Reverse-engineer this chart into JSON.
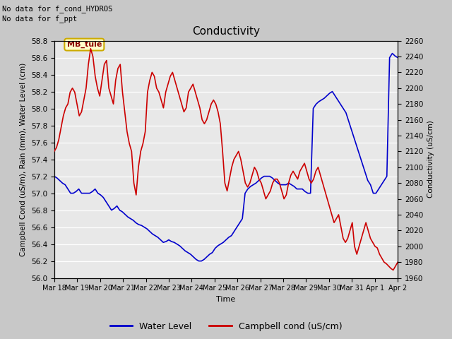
{
  "title": "Conductivity",
  "xlabel": "Time",
  "ylabel_left": "Campbell Cond (uS/m), Rain (mm), Water Level (cm)",
  "ylabel_right": "Conductivity (uS/cm)",
  "annotation_text": "No data for f_cond_HYDROS\nNo data for f_ppt",
  "box_label": "MB_tule",
  "ylim_left": [
    56.0,
    58.8
  ],
  "ylim_right": [
    1960,
    2260
  ],
  "xtick_labels": [
    "Mar 18",
    "Mar 19",
    "Mar 20",
    "Mar 21",
    "Mar 22",
    "Mar 23",
    "Mar 24",
    "Mar 25",
    "Mar 26",
    "Mar 27",
    "Mar 28",
    "Mar 29",
    "Mar 30",
    "Mar 31",
    "Apr 1",
    "Apr 2"
  ],
  "plot_bg_color": "#e8e8e8",
  "fig_bg_color": "#c8c8c8",
  "blue_color": "#0000cc",
  "red_color": "#cc0000",
  "legend_blue_label": "Water Level",
  "legend_red_label": "Campbell cond (uS/cm)",
  "water_level_y": [
    57.2,
    57.18,
    57.15,
    57.12,
    57.1,
    57.05,
    57.0,
    57.0,
    57.02,
    57.05,
    57.0,
    57.0,
    57.0,
    57.0,
    57.02,
    57.05,
    57.0,
    56.98,
    56.95,
    56.9,
    56.85,
    56.8,
    56.82,
    56.85,
    56.8,
    56.78,
    56.75,
    56.72,
    56.7,
    56.68,
    56.65,
    56.63,
    56.62,
    56.6,
    56.58,
    56.55,
    56.52,
    56.5,
    56.48,
    56.45,
    56.42,
    56.43,
    56.45,
    56.43,
    56.42,
    56.4,
    56.38,
    56.35,
    56.32,
    56.3,
    56.28,
    56.25,
    56.22,
    56.2,
    56.2,
    56.22,
    56.25,
    56.28,
    56.3,
    56.35,
    56.38,
    56.4,
    56.42,
    56.45,
    56.48,
    56.5,
    56.55,
    56.6,
    56.65,
    56.7,
    57.0,
    57.05,
    57.08,
    57.1,
    57.12,
    57.15,
    57.18,
    57.2,
    57.2,
    57.2,
    57.18,
    57.15,
    57.12,
    57.1,
    57.1,
    57.1,
    57.12,
    57.1,
    57.08,
    57.05,
    57.05,
    57.05,
    57.02,
    57.0,
    57.0,
    58.0,
    58.05,
    58.08,
    58.1,
    58.12,
    58.15,
    58.18,
    58.2,
    58.15,
    58.1,
    58.05,
    58.0,
    57.95,
    57.85,
    57.75,
    57.65,
    57.55,
    57.45,
    57.35,
    57.25,
    57.15,
    57.1,
    57.0,
    57.0,
    57.05,
    57.1,
    57.15,
    57.2,
    58.6,
    58.65,
    58.62,
    58.6
  ],
  "campbell_y": [
    2120,
    2125,
    2135,
    2150,
    2165,
    2175,
    2180,
    2195,
    2200,
    2195,
    2180,
    2165,
    2170,
    2185,
    2200,
    2230,
    2250,
    2240,
    2215,
    2200,
    2190,
    2210,
    2230,
    2235,
    2200,
    2190,
    2180,
    2210,
    2225,
    2230,
    2195,
    2170,
    2145,
    2130,
    2120,
    2080,
    2065,
    2100,
    2120,
    2130,
    2145,
    2195,
    2210,
    2220,
    2215,
    2200,
    2195,
    2185,
    2175,
    2195,
    2205,
    2215,
    2220,
    2210,
    2200,
    2190,
    2180,
    2170,
    2175,
    2195,
    2200,
    2205,
    2195,
    2185,
    2175,
    2160,
    2155,
    2160,
    2170,
    2180,
    2185,
    2180,
    2170,
    2155,
    2120,
    2080,
    2070,
    2085,
    2100,
    2110,
    2115,
    2120,
    2110,
    2095,
    2080,
    2075,
    2080,
    2090,
    2100,
    2095,
    2085,
    2080,
    2070,
    2060,
    2065,
    2070,
    2080,
    2085,
    2085,
    2080,
    2070,
    2060,
    2065,
    2080,
    2090,
    2095,
    2090,
    2085,
    2095,
    2100,
    2105,
    2095,
    2085,
    2080,
    2085,
    2095,
    2100,
    2090,
    2080,
    2070,
    2060,
    2050,
    2040,
    2030,
    2035,
    2040,
    2025,
    2010,
    2005,
    2010,
    2020,
    2030,
    2000,
    1990,
    2000,
    2010,
    2020,
    2030,
    2020,
    2010,
    2005,
    2000,
    1998,
    1990,
    1985,
    1980,
    1978,
    1975,
    1972,
    1970,
    1975,
    1980
  ]
}
